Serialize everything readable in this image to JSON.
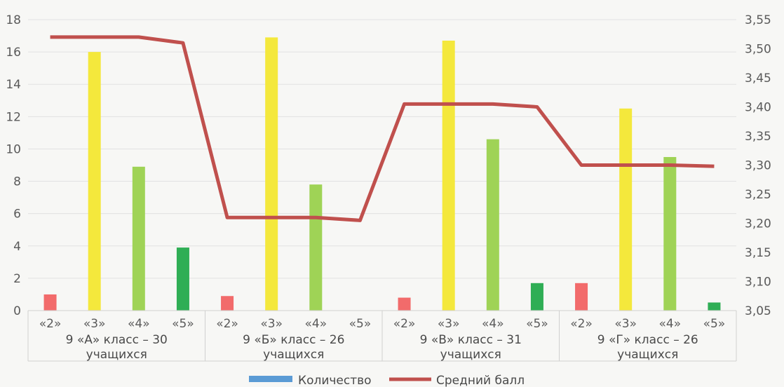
{
  "chart_data": {
    "type": "bar",
    "groups": [
      {
        "label_line1": "9 «А» класс – 30",
        "label_line2": "учащихся"
      },
      {
        "label_line1": "9 «Б» класс – 26",
        "label_line2": "учащихся"
      },
      {
        "label_line1": "9 «В» класс – 31",
        "label_line2": "учащихся"
      },
      {
        "label_line1": "9 «Г» класс – 26",
        "label_line2": "учащихся"
      }
    ],
    "grade_labels": [
      "«2»",
      "«3»",
      "«4»",
      "«5»"
    ],
    "series": [
      {
        "name": "Количество",
        "type": "bar",
        "axis": "left",
        "values": [
          [
            1,
            16,
            8.9,
            3.9
          ],
          [
            0.9,
            16.9,
            7.8,
            0
          ],
          [
            0.8,
            16.7,
            10.6,
            1.7
          ],
          [
            1.7,
            12.5,
            9.5,
            0.5
          ]
        ],
        "grade_colors": [
          "#f26b6b",
          "#f4e83c",
          "#9fd356",
          "#2fae55"
        ],
        "legend_color": "#5b9bd5"
      },
      {
        "name": "Средний балл",
        "type": "line",
        "axis": "right",
        "values": [
          [
            3.52,
            3.52,
            3.52,
            3.51
          ],
          [
            3.21,
            3.21,
            3.21,
            3.205
          ],
          [
            3.405,
            3.405,
            3.405,
            3.4
          ],
          [
            3.3,
            3.3,
            3.3,
            3.298
          ]
        ],
        "color": "#c0504d"
      }
    ],
    "left_axis": {
      "ylim": [
        0,
        18
      ],
      "ticks": [
        "0",
        "2",
        "4",
        "6",
        "8",
        "10",
        "12",
        "14",
        "16",
        "18"
      ]
    },
    "right_axis": {
      "ylim": [
        3.05,
        3.55
      ],
      "ticks": [
        "3,05",
        "3,10",
        "3,15",
        "3,20",
        "3,25",
        "3,30",
        "3,35",
        "3,40",
        "3,45",
        "3,50",
        "3,55"
      ]
    },
    "grid": true,
    "legend_position": "bottom"
  }
}
